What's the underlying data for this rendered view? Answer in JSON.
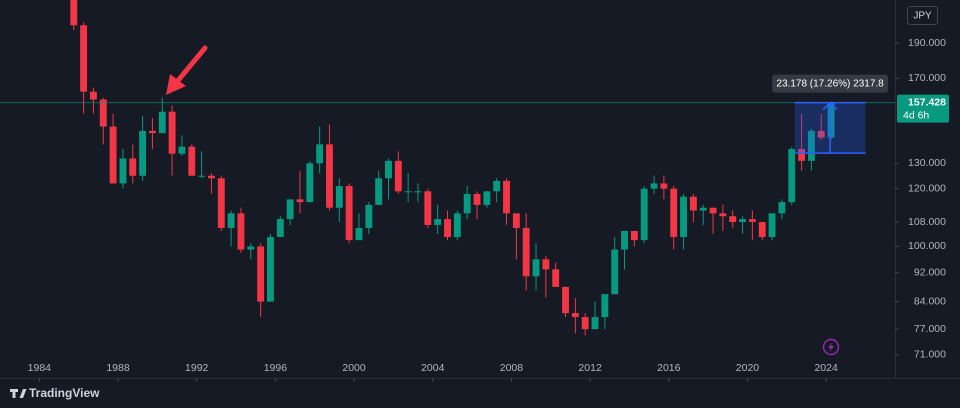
{
  "chart_data": {
    "type": "candlestick",
    "currency": "JPY",
    "brand": "TradingView",
    "log_scale": true,
    "grid": false,
    "up_color": "#089981",
    "down_color": "#f23645",
    "x": [
      1985.5,
      1986,
      1986.5,
      1987,
      1987.5,
      1988,
      1988.5,
      1989,
      1989.5,
      1990,
      1990.5,
      1991,
      1991.5,
      1992,
      1992.5,
      1993,
      1993.5,
      1994,
      1994.5,
      1995,
      1995.5,
      1996,
      1996.5,
      1997,
      1997.5,
      1998,
      1998.5,
      1999,
      1999.5,
      2000,
      2000.5,
      2001,
      2001.5,
      2002,
      2002.5,
      2003,
      2003.5,
      2004,
      2004.5,
      2005,
      2005.5,
      2006,
      2006.5,
      2007,
      2007.5,
      2008,
      2008.5,
      2009,
      2009.5,
      2010,
      2010.5,
      2011,
      2011.5,
      2012,
      2012.5,
      2013,
      2013.5,
      2014,
      2014.5,
      2015,
      2015.5,
      2016,
      2016.5,
      2017,
      2017.5,
      2018,
      2018.5,
      2019,
      2019.5,
      2020,
      2020.5,
      2021,
      2021.5,
      2022,
      2022.5,
      2023,
      2023.5,
      2024
    ],
    "open": [
      238,
      201,
      163,
      159,
      146,
      122,
      132,
      125,
      144,
      143,
      153,
      134,
      137,
      125,
      125,
      124,
      106,
      111,
      99,
      100,
      84,
      103,
      109,
      116,
      115,
      130,
      138,
      113,
      121,
      102,
      106,
      114,
      124,
      131,
      119,
      119,
      119,
      107,
      109,
      103,
      111,
      118,
      114,
      119,
      123,
      111,
      106,
      91,
      96,
      93,
      88,
      81,
      80,
      77,
      80,
      86,
      99,
      105,
      102,
      120,
      122,
      120,
      103,
      117,
      112,
      113,
      111,
      110,
      108,
      109,
      108,
      103,
      111,
      115,
      136,
      131,
      144,
      141
    ],
    "high": [
      242,
      203,
      165,
      160,
      152,
      136,
      138,
      151,
      150,
      160,
      156,
      142,
      138,
      135,
      126,
      125,
      112,
      113,
      101,
      101,
      104,
      110,
      116,
      127,
      131,
      146,
      147,
      124,
      122,
      111,
      115,
      127,
      132,
      135,
      126,
      122,
      120,
      114,
      112,
      112,
      121,
      119,
      119,
      124,
      124,
      111,
      111,
      101,
      97,
      95,
      88,
      85,
      81,
      84,
      86,
      103,
      105,
      105,
      121,
      125,
      125,
      121,
      118,
      118,
      114,
      113,
      114,
      112,
      110,
      112,
      108,
      111,
      116,
      137,
      152,
      145,
      152,
      158
    ],
    "low": [
      198,
      152,
      152,
      138,
      122,
      120,
      122,
      123,
      136,
      143,
      125,
      133,
      125,
      124,
      118,
      105,
      100,
      98,
      96,
      80,
      84,
      103,
      107,
      111,
      115,
      126,
      112,
      108,
      101,
      102,
      104,
      114,
      116,
      118,
      115,
      115,
      106,
      104,
      102,
      102,
      109,
      109,
      113,
      115,
      107,
      96,
      87,
      87,
      85,
      88,
      80,
      76,
      75.5,
      77,
      77,
      86,
      93,
      100,
      101,
      118,
      116,
      99,
      99,
      108,
      107,
      104,
      105,
      106,
      104,
      102,
      102,
      102,
      109,
      114,
      127,
      127,
      140,
      140
    ],
    "close": [
      201,
      163,
      159,
      146,
      122,
      132,
      125,
      144,
      143,
      153,
      134,
      137,
      125,
      125,
      124,
      106,
      111,
      99,
      100,
      84,
      103,
      109,
      116,
      115,
      130,
      138,
      113,
      121,
      102,
      106,
      114,
      124,
      131,
      119,
      119,
      119,
      107,
      109,
      103,
      111,
      118,
      114,
      119,
      123,
      111,
      106,
      91,
      96,
      93,
      88,
      81,
      80,
      77,
      80,
      86,
      99,
      105,
      102,
      120,
      122,
      120,
      103,
      117,
      112,
      113,
      111,
      110,
      108,
      109,
      108,
      103,
      111,
      115,
      136,
      131,
      144,
      141,
      157.428
    ],
    "last_price": 157.428,
    "countdown": "4d 6h",
    "measure": {
      "label": "23.178 (17.26%) 2317.8",
      "from": [
        2022.4,
        134.25
      ],
      "to": [
        2026,
        157.428
      ]
    },
    "xlim": [
      1982,
      2027.5
    ],
    "xticks": [
      1984,
      1988,
      1992,
      1996,
      2000,
      2004,
      2008,
      2012,
      2016,
      2020,
      2024
    ],
    "ylim": [
      66,
      217.7
    ],
    "yticks": [
      {
        "value": 71,
        "label": "71.000"
      },
      {
        "value": 77,
        "label": "77.000"
      },
      {
        "value": 84,
        "label": "84.000"
      },
      {
        "value": 92,
        "label": "92.000"
      },
      {
        "value": 100,
        "label": "100.000"
      },
      {
        "value": 108,
        "label": "108.000"
      },
      {
        "value": 120,
        "label": "120.000"
      },
      {
        "value": 130,
        "label": "130.000"
      },
      {
        "value": 170,
        "label": "170.000"
      },
      {
        "value": 190,
        "label": "190.000"
      }
    ]
  }
}
